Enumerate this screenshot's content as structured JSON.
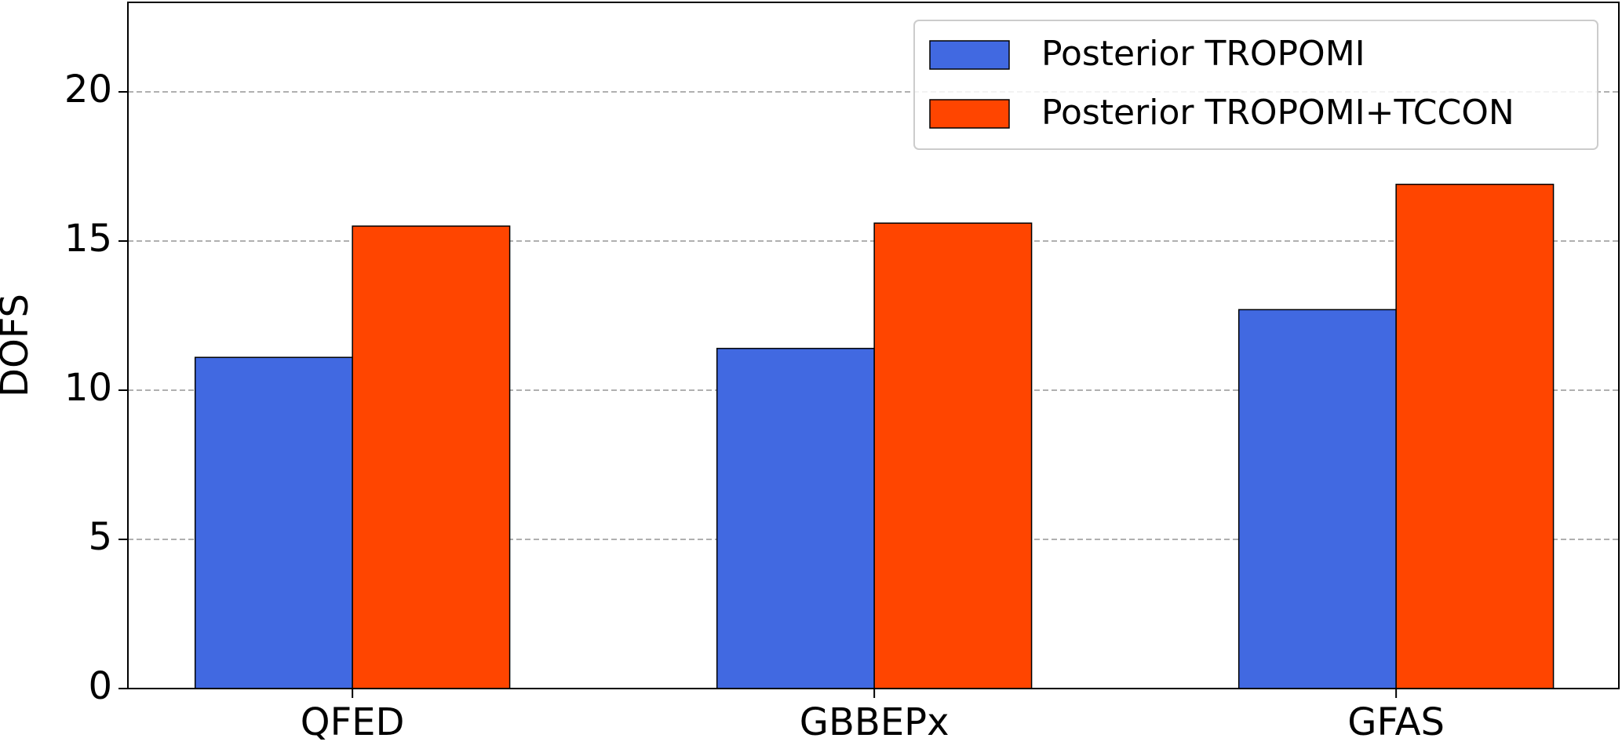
{
  "chart_data": {
    "type": "bar",
    "y_label": "DOFS",
    "categories": [
      "QFED",
      "GBBEPx",
      "GFAS"
    ],
    "series": [
      {
        "name": "Posterior TROPOMI",
        "color": "#4169e1",
        "values": [
          11.1,
          11.4,
          12.7
        ]
      },
      {
        "name": "Posterior TROPOMI+TCCON",
        "color": "#ff4500",
        "values": [
          15.5,
          15.6,
          16.9
        ]
      }
    ],
    "ylim": [
      0,
      23
    ],
    "yticks": [
      0,
      5,
      10,
      15,
      20
    ],
    "grid": true,
    "legend": "upper right"
  }
}
